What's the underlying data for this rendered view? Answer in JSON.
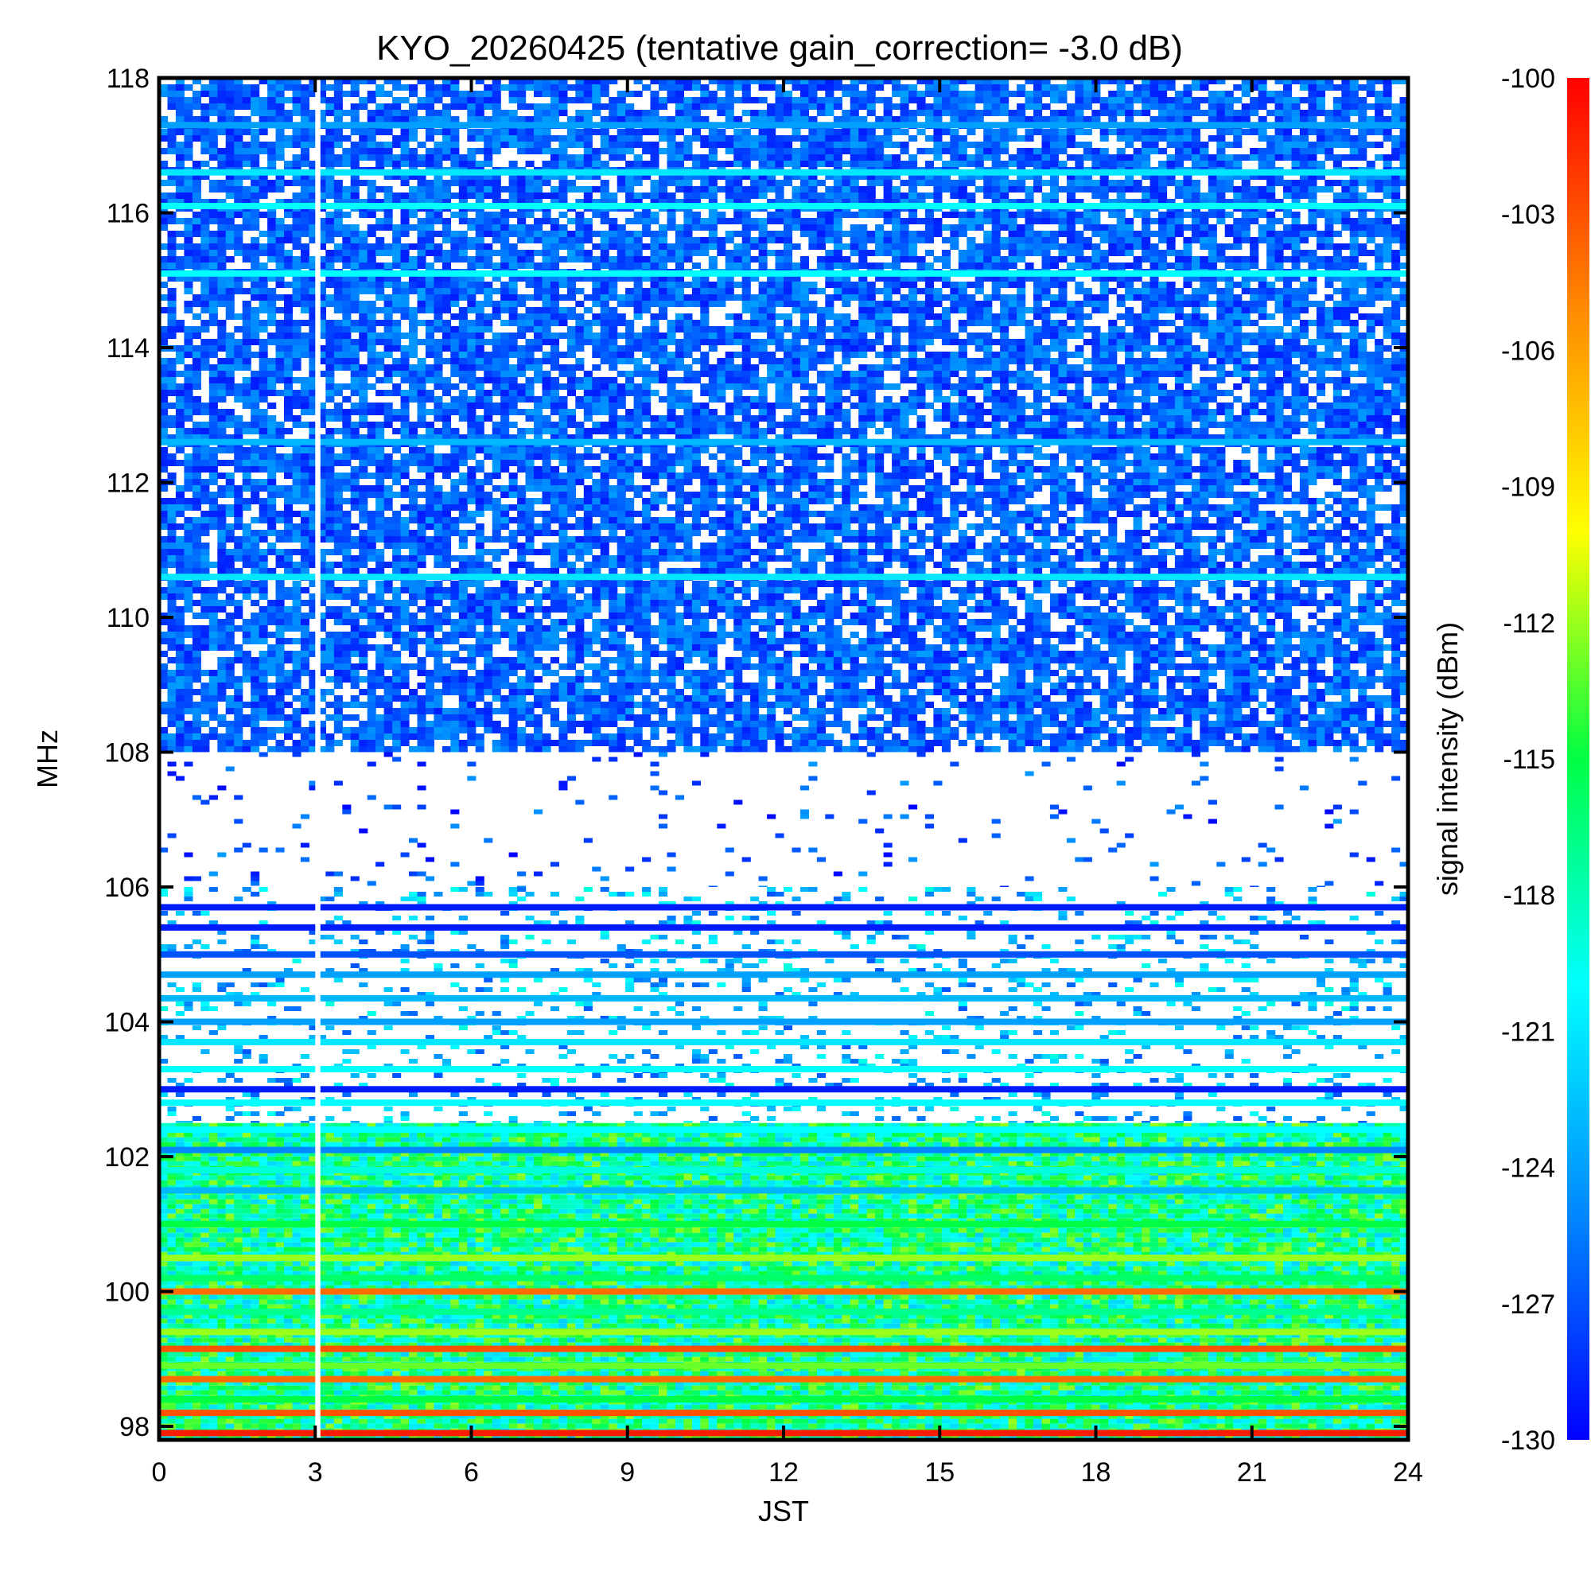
{
  "chart_data": {
    "type": "heatmap",
    "title": "KYO_20260425 (tentative gain_correction= -3.0 dB)",
    "xlabel": "JST",
    "ylabel": "MHz",
    "xlim": [
      0,
      24
    ],
    "ylim": [
      97.8,
      118
    ],
    "x_ticks": [
      "0",
      "3",
      "6",
      "9",
      "12",
      "15",
      "18",
      "21",
      "24"
    ],
    "y_ticks": [
      "98",
      "100",
      "102",
      "104",
      "106",
      "108",
      "110",
      "112",
      "114",
      "116",
      "118"
    ],
    "colorbar": {
      "label": "signal intensity (dBm)",
      "range": [
        -130,
        -100
      ],
      "ticks": [
        "-100",
        "-103",
        "-106",
        "-109",
        "-112",
        "-115",
        "-118",
        "-121",
        "-124",
        "-127",
        "-130"
      ],
      "colors": [
        "#0000ff",
        "#0088ff",
        "#00ffff",
        "#00ff44",
        "#ffff00",
        "#ff8800",
        "#ff0000"
      ]
    },
    "data_gap": {
      "x_start": 3.0,
      "x_end": 3.1
    },
    "band_segments": [
      {
        "from_mhz": 108,
        "to_mhz": 118,
        "pattern": "dense-noise",
        "level_dbm": -129
      },
      {
        "from_mhz": 106,
        "to_mhz": 108,
        "pattern": "sparse",
        "level_dbm": -130
      },
      {
        "from_mhz": 102.5,
        "to_mhz": 106,
        "pattern": "discrete-stations",
        "level_dbm": -127
      },
      {
        "from_mhz": 97.8,
        "to_mhz": 102.5,
        "pattern": "strong-continuous",
        "level_dbm": -116
      }
    ],
    "station_lines": [
      {
        "mhz": 117.3,
        "level_dbm": -124
      },
      {
        "mhz": 116.6,
        "level_dbm": -121
      },
      {
        "mhz": 116.1,
        "level_dbm": -120
      },
      {
        "mhz": 115.1,
        "level_dbm": -120
      },
      {
        "mhz": 112.6,
        "level_dbm": -123
      },
      {
        "mhz": 110.6,
        "level_dbm": -121
      },
      {
        "mhz": 105.7,
        "level_dbm": -129
      },
      {
        "mhz": 105.4,
        "level_dbm": -129
      },
      {
        "mhz": 105.0,
        "level_dbm": -127
      },
      {
        "mhz": 104.7,
        "level_dbm": -124
      },
      {
        "mhz": 104.35,
        "level_dbm": -123
      },
      {
        "mhz": 104.0,
        "level_dbm": -124
      },
      {
        "mhz": 103.7,
        "level_dbm": -121
      },
      {
        "mhz": 103.3,
        "level_dbm": -120
      },
      {
        "mhz": 103.0,
        "level_dbm": -129
      },
      {
        "mhz": 102.8,
        "level_dbm": -120
      },
      {
        "mhz": 102.4,
        "level_dbm": -120
      },
      {
        "mhz": 102.1,
        "level_dbm": -125
      },
      {
        "mhz": 101.8,
        "level_dbm": -119
      },
      {
        "mhz": 101.5,
        "level_dbm": -123
      },
      {
        "mhz": 101.0,
        "level_dbm": -115
      },
      {
        "mhz": 100.5,
        "level_dbm": -112
      },
      {
        "mhz": 100.2,
        "level_dbm": -116
      },
      {
        "mhz": 100.0,
        "level_dbm": -104
      },
      {
        "mhz": 99.7,
        "level_dbm": -117
      },
      {
        "mhz": 99.4,
        "level_dbm": -112
      },
      {
        "mhz": 99.15,
        "level_dbm": -103
      },
      {
        "mhz": 98.9,
        "level_dbm": -113
      },
      {
        "mhz": 98.7,
        "level_dbm": -104
      },
      {
        "mhz": 98.4,
        "level_dbm": -115
      },
      {
        "mhz": 98.2,
        "level_dbm": -103
      },
      {
        "mhz": 97.9,
        "level_dbm": -101
      }
    ]
  }
}
